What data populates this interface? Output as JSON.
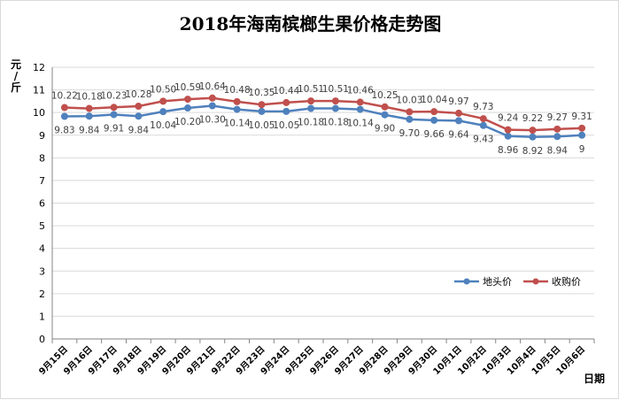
{
  "chart_data": {
    "type": "line",
    "title": "2018年海南槟榔生果价格走势图",
    "ylabel": "元/斤",
    "xlabel": "日期",
    "ylim": [
      0,
      12
    ],
    "yticks": [
      0,
      1,
      2,
      3,
      4,
      5,
      6,
      7,
      8,
      9,
      10,
      11,
      12
    ],
    "grid": true,
    "legend_position": "right",
    "categories": [
      "9月15日",
      "9月16日",
      "9月17日",
      "9月18日",
      "9月19日",
      "9月20日",
      "9月21日",
      "9月22日",
      "9月23日",
      "9月24日",
      "9月25日",
      "9月26日",
      "9月27日",
      "9月28日",
      "9月29日",
      "9月30日",
      "10月1日",
      "10月2日",
      "10月3日",
      "10月4日",
      "10月5日",
      "10月6日"
    ],
    "series": [
      {
        "name": "地头价",
        "color": "#4f81bd",
        "values": [
          9.83,
          9.84,
          9.91,
          9.84,
          10.04,
          10.2,
          10.3,
          10.14,
          10.05,
          10.05,
          10.18,
          10.18,
          10.14,
          9.9,
          9.7,
          9.66,
          9.64,
          9.43,
          8.96,
          8.92,
          8.94,
          9
        ],
        "data_labels": [
          "9.83",
          "9.84",
          "9.91",
          "9.84",
          "10.04",
          "10.20",
          "10.30",
          "10.14",
          "10.05",
          "10.05",
          "10.18",
          "10.18",
          "10.14",
          "9.90",
          "9.70",
          "9.66",
          "9.64",
          "9.43",
          "8.96",
          "8.92",
          "8.94",
          "9"
        ]
      },
      {
        "name": "收购价",
        "color": "#c0504d",
        "values": [
          10.22,
          10.18,
          10.23,
          10.28,
          10.5,
          10.59,
          10.64,
          10.48,
          10.35,
          10.44,
          10.51,
          10.51,
          10.46,
          10.25,
          10.03,
          10.04,
          9.97,
          9.73,
          9.24,
          9.22,
          9.27,
          9.31
        ],
        "data_labels": [
          "10.22",
          "10.18",
          "10.23",
          "10.28",
          "10.50",
          "10.59",
          "10.64",
          "10.48",
          "10.35",
          "10.44",
          "10.51",
          "10.51",
          "10.46",
          "10.25",
          "10.03",
          "10.04",
          "9.97",
          "9.73",
          "9.24",
          "9.22",
          "9.27",
          "9.31"
        ]
      }
    ]
  }
}
